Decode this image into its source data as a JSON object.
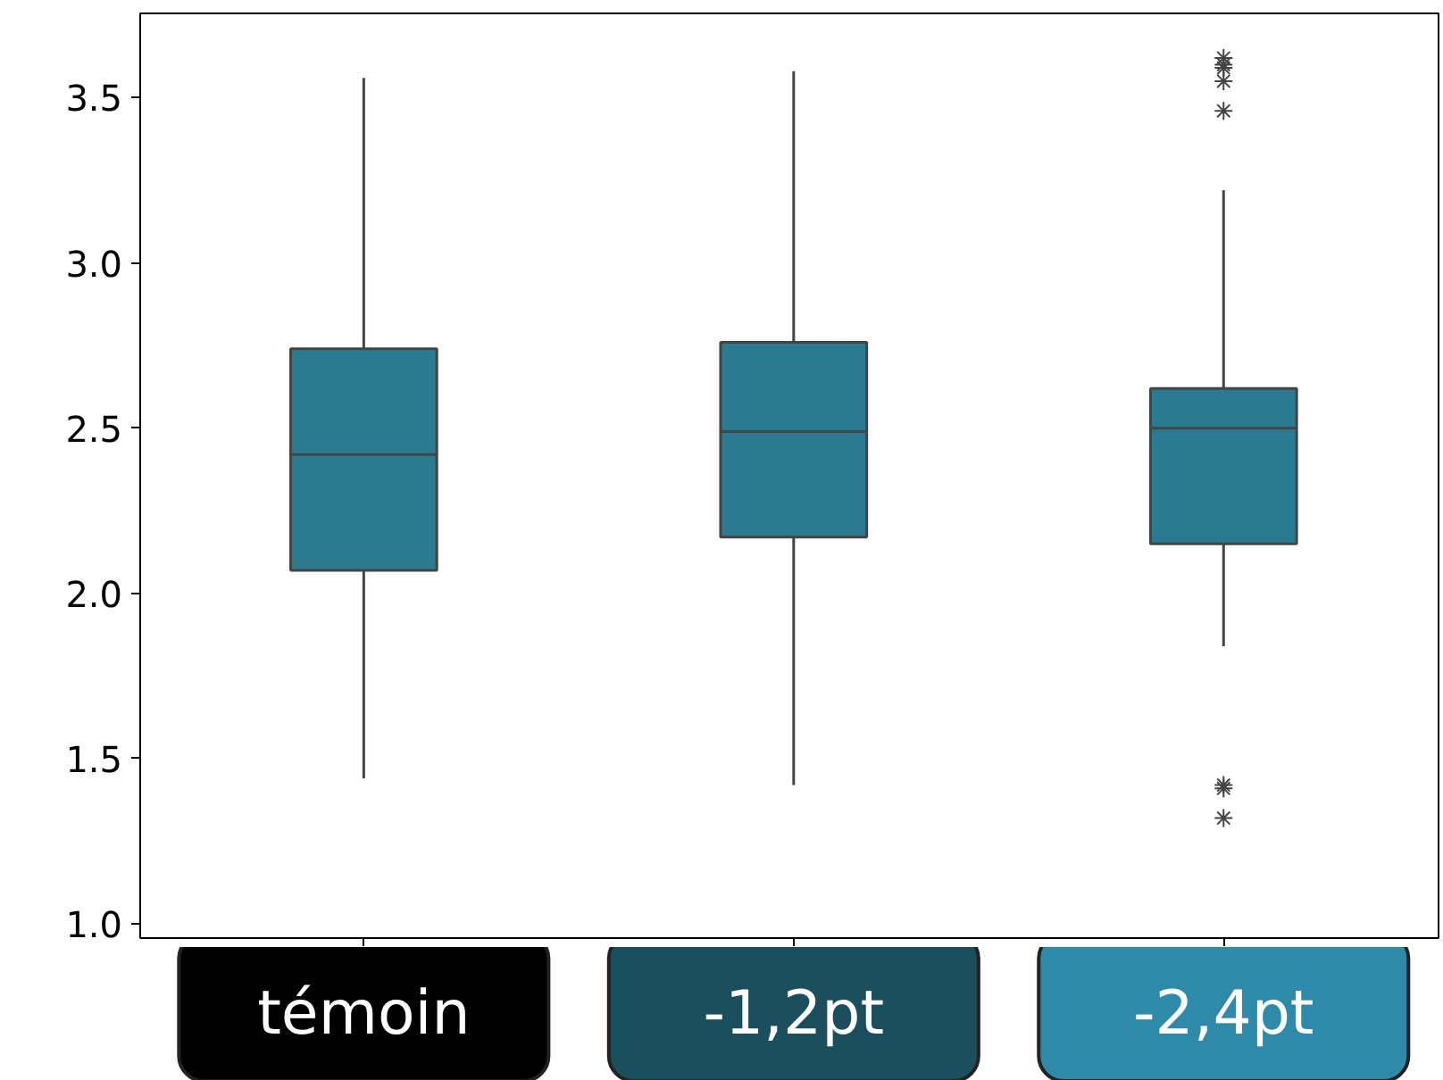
{
  "chart_data": {
    "type": "box",
    "categories": [
      "témoin",
      "-1,2pt",
      "-2,4pt"
    ],
    "colors": [
      "#2a7b91",
      "#2a7b91",
      "#2a7b91"
    ],
    "boxes": [
      {
        "low": 1.44,
        "q1": 2.07,
        "median": 2.42,
        "q3": 2.74,
        "high": 3.56
      },
      {
        "low": 1.42,
        "q1": 2.17,
        "median": 2.49,
        "q3": 2.76,
        "high": 3.58
      },
      {
        "low": 1.84,
        "q1": 2.15,
        "median": 2.5,
        "q3": 2.62,
        "high": 3.22,
        "outliers": [
          3.62,
          3.6,
          3.59,
          3.55,
          3.46,
          1.42,
          1.41,
          1.32
        ]
      }
    ],
    "ylim": [
      0.957,
      3.755
    ],
    "yticks": [
      {
        "value": 1.0,
        "label": "1.0"
      },
      {
        "value": 1.5,
        "label": "1.5"
      },
      {
        "value": 2.0,
        "label": "2.0"
      },
      {
        "value": 2.5,
        "label": "2.5"
      },
      {
        "value": 3.0,
        "label": "3.0"
      },
      {
        "value": 3.5,
        "label": "3.5"
      }
    ],
    "grid": false
  }
}
